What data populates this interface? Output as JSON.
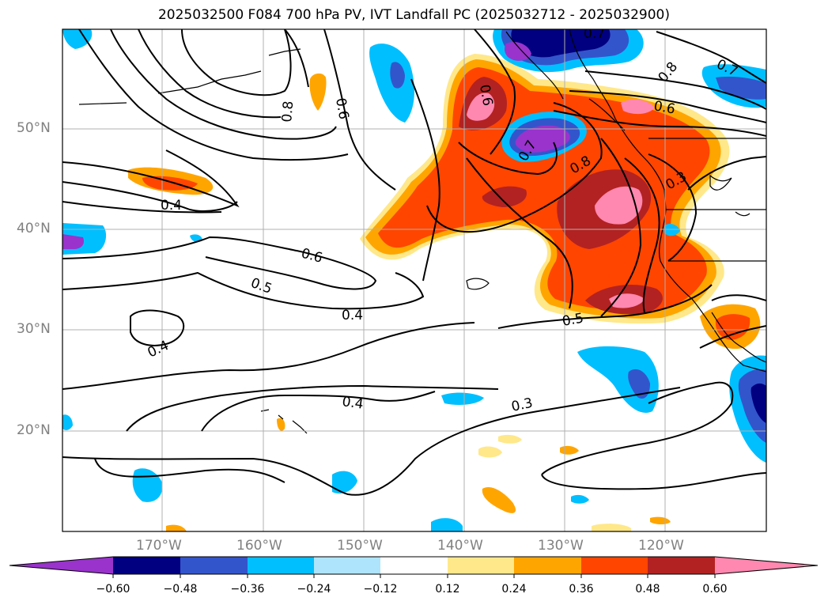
{
  "title": "2025032500 F084 700 hPa PV, IVT Landfall PC (2025032712 - 2025032900)",
  "lat_labels": [
    "50°N",
    "40°N",
    "30°N",
    "20°N"
  ],
  "lon_labels": [
    "170°W",
    "160°W",
    "150°W",
    "140°W",
    "130°W",
    "120°W"
  ],
  "colorbar": {
    "ticks": [
      "−0.60",
      "−0.48",
      "−0.36",
      "−0.24",
      "−0.12",
      "0.12",
      "0.24",
      "0.36",
      "0.48",
      "0.60"
    ],
    "colors": [
      "#9933cc",
      "#000080",
      "#3355cc",
      "#00bfff",
      "#aee4fc",
      "#ffffff",
      "#ffe88a",
      "#ffa500",
      "#ff4500",
      "#b22222",
      "#ff88b0"
    ]
  },
  "contour_labels": [
    "0.7",
    "0.8",
    "0.6",
    "0.8",
    "0.6",
    "0.4",
    "0.6",
    "0.5",
    "0.4",
    "0.4",
    "0.4",
    "0.3",
    "0.5",
    "0.8",
    "0.3",
    "0.7",
    "0.6",
    "0.7"
  ],
  "colors": {
    "contour": "#000000",
    "grid": "#b0b0b0",
    "label": "#808080"
  }
}
